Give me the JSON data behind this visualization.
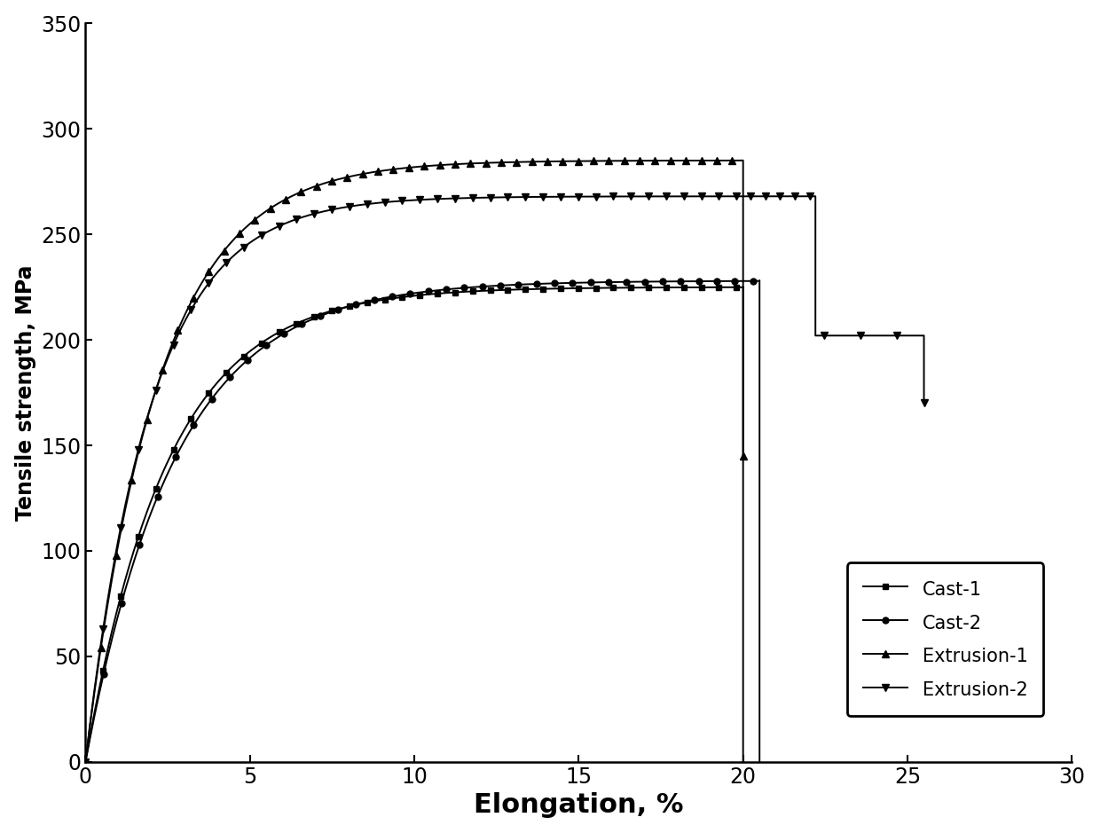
{
  "xlabel": "Elongation, %",
  "ylabel": "Tensile strength, MPa",
  "xlim": [
    0,
    30
  ],
  "ylim": [
    0,
    350
  ],
  "xticks": [
    0,
    5,
    10,
    15,
    20,
    25,
    30
  ],
  "yticks": [
    0,
    50,
    100,
    150,
    200,
    250,
    300,
    350
  ],
  "legend_labels": [
    "Cast-1",
    "Cast-2",
    "Extrusion-1",
    "Extrusion-2"
  ],
  "line_color": "#000000",
  "background_color": "#ffffff",
  "marker_sizes": [
    5,
    5,
    6,
    6
  ],
  "marker_types": [
    "s",
    "o",
    "^",
    "v"
  ],
  "linewidth": 1.4,
  "xlabel_fontsize": 22,
  "ylabel_fontsize": 17,
  "tick_fontsize": 17,
  "legend_fontsize": 15,
  "cast1_x_end": 20.0,
  "cast1_y_max": 225.0,
  "cast1_k": 8.0,
  "cast2_x_end": 20.5,
  "cast2_y_max": 228.0,
  "cast2_k": 7.5,
  "ext1_x_end": 20.0,
  "ext1_y_max": 285.0,
  "ext1_y_drop": 145.0,
  "ext1_k": 9.0,
  "ext2_y_max": 265.0,
  "ext2_k": 10.0,
  "ext2_x_plateau_end": 22.2,
  "ext2_y_plateau": 268.0,
  "ext2_x_final": 25.5,
  "ext2_y_final": 202.0
}
